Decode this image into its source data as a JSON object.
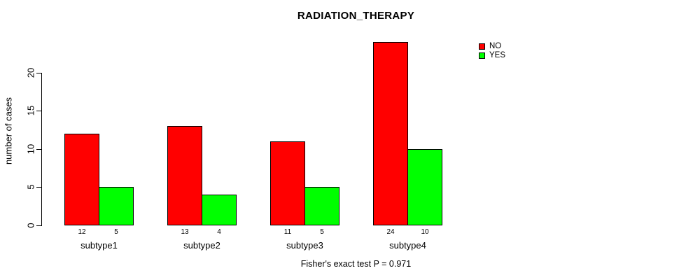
{
  "chart_data": {
    "type": "bar",
    "title": "RADIATION_THERAPY",
    "ylabel": "number of cases",
    "xlabel": "",
    "categories": [
      "subtype1",
      "subtype2",
      "subtype3",
      "subtype4"
    ],
    "series": [
      {
        "name": "NO",
        "color": "#ff0000",
        "values": [
          12,
          13,
          11,
          24
        ]
      },
      {
        "name": "YES",
        "color": "#00ff00",
        "values": [
          5,
          4,
          5,
          10
        ]
      }
    ],
    "bar_value_labels_shown": true,
    "yticks": [
      0,
      5,
      10,
      15,
      20
    ],
    "ylim": [
      0,
      24
    ],
    "grid": false,
    "legend_position": "top-right",
    "annotation": "Fisher's exact test P = 0.971",
    "colors": {
      "no": "#ff0000",
      "yes": "#00ff00",
      "axis": "#000000",
      "text": "#000000",
      "background": "#ffffff"
    }
  }
}
